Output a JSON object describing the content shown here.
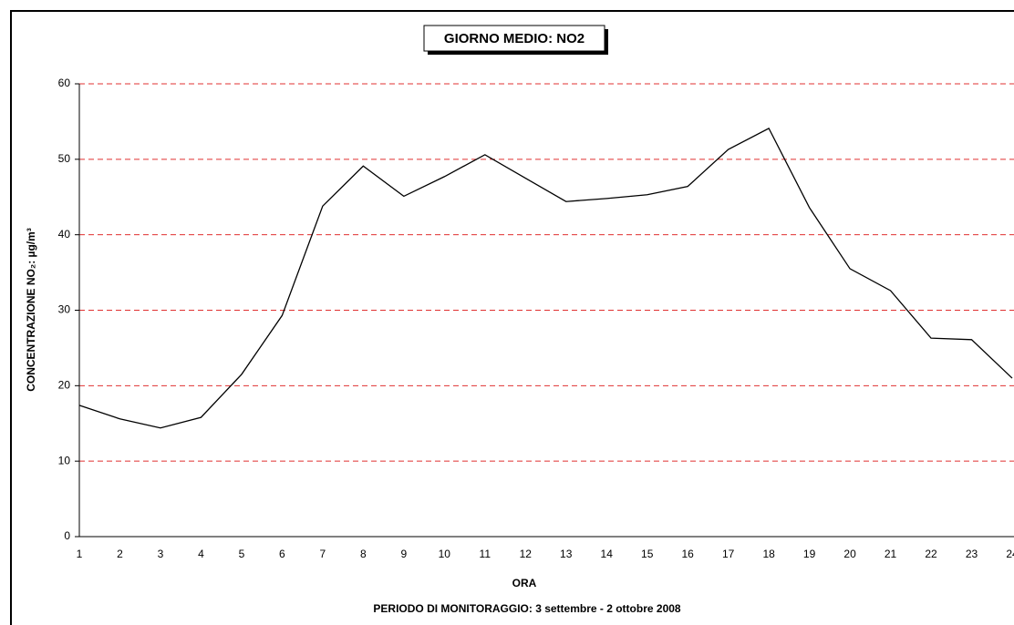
{
  "chart_data": {
    "type": "line",
    "title": "GIORNO MEDIO: NO2",
    "x_label": "ORA",
    "y_label": "CONCENTRAZIONE NO₂:  µg/m³",
    "subtitle": "PERIODO DI MONITORAGGIO: 3 settembre - 2 ottobre 2008",
    "categories": [
      "1",
      "2",
      "3",
      "4",
      "5",
      "6",
      "7",
      "8",
      "9",
      "10",
      "11",
      "12",
      "13",
      "14",
      "15",
      "16",
      "17",
      "18",
      "19",
      "20",
      "21",
      "22",
      "23",
      "24"
    ],
    "values": [
      17.4,
      15.6,
      14.4,
      15.8,
      21.5,
      29.3,
      43.8,
      49.1,
      45.1,
      47.7,
      50.6,
      47.5,
      44.4,
      44.8,
      45.3,
      46.4,
      51.3,
      54.1,
      43.6,
      35.5,
      32.6,
      26.3,
      26.1,
      21.0
    ],
    "color": "#000000",
    "grid_color": "#e03030",
    "ylim": [
      0,
      60
    ],
    "yticks": [
      0,
      10,
      20,
      30,
      40,
      50,
      60
    ],
    "grid": true
  }
}
